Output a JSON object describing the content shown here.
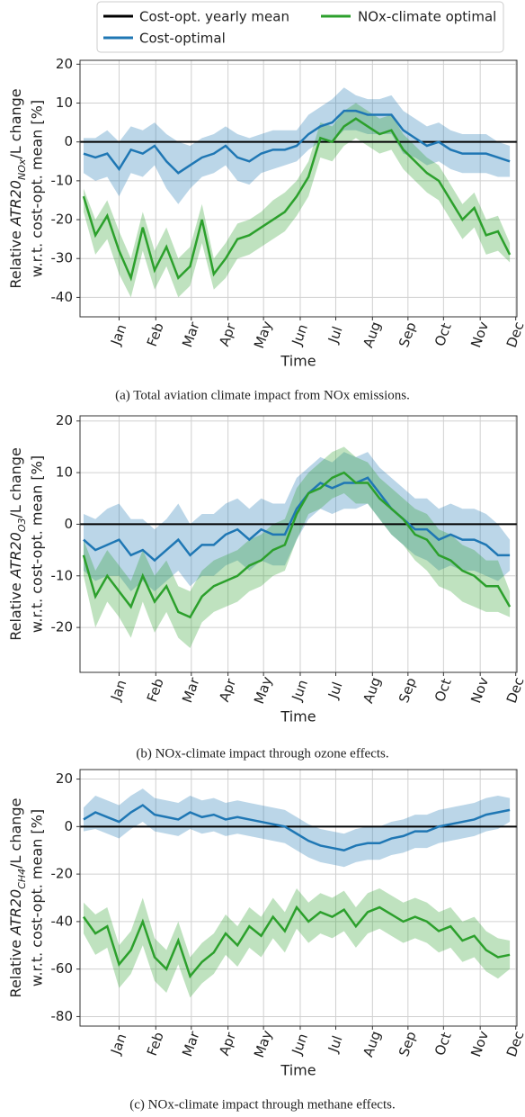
{
  "chart_data": [
    {
      "type": "line",
      "caption": "(a) Total aviation climate impact from NOx emissions.",
      "ylabel": {
        "parts": [
          "Relative ",
          "ATR20",
          "NOx",
          "/L change"
        ],
        "line2": "w.r.t. cost-opt. mean [%]"
      },
      "xlabel": "Time",
      "hline": {
        "name": "Cost-opt. yearly mean",
        "value": 0,
        "color": "#000000"
      },
      "x": [
        0,
        10,
        20,
        30,
        40,
        50,
        60,
        70,
        80,
        90,
        100,
        110,
        120,
        130,
        140,
        150,
        160,
        170,
        180,
        190,
        200,
        210,
        220,
        230,
        240,
        250,
        260,
        270,
        280,
        290,
        300,
        310,
        320,
        330,
        340,
        350,
        360
      ],
      "xlim": [
        -3,
        366
      ],
      "xticks": [
        {
          "value": 30,
          "label": "Jan"
        },
        {
          "value": 61,
          "label": "Feb"
        },
        {
          "value": 91,
          "label": "Mar"
        },
        {
          "value": 122,
          "label": "Apr"
        },
        {
          "value": 152,
          "label": "May"
        },
        {
          "value": 183,
          "label": "Jun"
        },
        {
          "value": 213,
          "label": "Jul"
        },
        {
          "value": 244,
          "label": "Aug"
        },
        {
          "value": 274,
          "label": "Sep"
        },
        {
          "value": 304,
          "label": "Oct"
        },
        {
          "value": 335,
          "label": "Nov"
        },
        {
          "value": 365,
          "label": "Dec"
        }
      ],
      "ylim": [
        -45,
        21
      ],
      "yticks": [
        -40,
        -30,
        -20,
        -10,
        0,
        10,
        20
      ],
      "grid": true,
      "series": [
        {
          "name": "Cost-optimal",
          "color": "#1f77b4",
          "values": [
            -3,
            -4,
            -3,
            -7,
            -2,
            -3,
            -1,
            -5,
            -8,
            -6,
            -4,
            -3,
            -1,
            -4,
            -5,
            -3,
            -2,
            -2,
            -1,
            2,
            4,
            5,
            8,
            8,
            7,
            7,
            7,
            3,
            1,
            -1,
            0,
            -2,
            -3,
            -3,
            -3,
            -4,
            -5
          ],
          "lower": [
            -8,
            -10,
            -9,
            -14,
            -8,
            -9,
            -6,
            -12,
            -16,
            -12,
            -9,
            -8,
            -6,
            -10,
            -11,
            -8,
            -7,
            -6,
            -5,
            -2,
            0,
            0,
            3,
            3,
            2,
            2,
            2,
            -3,
            -4,
            -6,
            -5,
            -7,
            -8,
            -8,
            -8,
            -9,
            -9
          ],
          "upper": [
            1,
            1,
            3,
            0,
            4,
            3,
            5,
            2,
            0,
            -1,
            1,
            2,
            4,
            2,
            1,
            2,
            3,
            3,
            3,
            7,
            9,
            11,
            14,
            12,
            11,
            11,
            12,
            8,
            6,
            4,
            5,
            3,
            2,
            2,
            2,
            0,
            -1
          ]
        },
        {
          "name": "NOx-climate optimal",
          "color": "#2ca02c",
          "values": [
            -14,
            -24,
            -19,
            -28,
            -35,
            -22,
            -33,
            -27,
            -35,
            -32,
            -20,
            -34,
            -30,
            -25,
            -24,
            -22,
            -20,
            -18,
            -14,
            -9,
            1,
            0,
            4,
            6,
            4,
            2,
            3,
            -2,
            -5,
            -8,
            -10,
            -15,
            -20,
            -17,
            -24,
            -23,
            -29
          ],
          "lower": [
            -18,
            -29,
            -25,
            -34,
            -40,
            -28,
            -38,
            -32,
            -40,
            -37,
            -26,
            -38,
            -35,
            -30,
            -29,
            -27,
            -25,
            -23,
            -19,
            -14,
            -4,
            -5,
            -1,
            1,
            -1,
            -3,
            -2,
            -7,
            -10,
            -13,
            -15,
            -20,
            -25,
            -22,
            -29,
            -28,
            -31
          ],
          "upper": [
            -12,
            -20,
            -15,
            -23,
            -30,
            -18,
            -28,
            -22,
            -30,
            -27,
            -16,
            -30,
            -26,
            -21,
            -20,
            -18,
            -15,
            -13,
            -10,
            -5,
            5,
            4,
            8,
            10,
            8,
            6,
            7,
            2,
            -1,
            -4,
            -6,
            -11,
            -16,
            -13,
            -20,
            -19,
            -26
          ]
        }
      ]
    },
    {
      "type": "line",
      "caption": "(b) NOx-climate impact through ozone effects.",
      "ylabel": {
        "parts": [
          "Relative ",
          "ATR20",
          "O3",
          "/L change"
        ],
        "line2": "w.r.t. cost-opt. mean [%]"
      },
      "xlabel": "Time",
      "hline": {
        "value": 0,
        "color": "#000000"
      },
      "x": [
        0,
        10,
        20,
        30,
        40,
        50,
        60,
        70,
        80,
        90,
        100,
        110,
        120,
        130,
        140,
        150,
        160,
        170,
        180,
        190,
        200,
        210,
        220,
        230,
        240,
        250,
        260,
        270,
        280,
        290,
        300,
        310,
        320,
        330,
        340,
        350,
        360
      ],
      "xlim": [
        -3,
        366
      ],
      "xticks": [
        {
          "value": 30,
          "label": "Jan"
        },
        {
          "value": 61,
          "label": "Feb"
        },
        {
          "value": 91,
          "label": "Mar"
        },
        {
          "value": 122,
          "label": "Apr"
        },
        {
          "value": 152,
          "label": "May"
        },
        {
          "value": 183,
          "label": "Jun"
        },
        {
          "value": 213,
          "label": "Jul"
        },
        {
          "value": 244,
          "label": "Aug"
        },
        {
          "value": 274,
          "label": "Sep"
        },
        {
          "value": 304,
          "label": "Oct"
        },
        {
          "value": 335,
          "label": "Nov"
        },
        {
          "value": 365,
          "label": "Dec"
        }
      ],
      "ylim": [
        -28.7,
        21
      ],
      "yticks": [
        -20,
        -10,
        0,
        10,
        20
      ],
      "grid": true,
      "series": [
        {
          "name": "Cost-optimal",
          "color": "#1f77b4",
          "values": [
            -3,
            -5,
            -4,
            -3,
            -6,
            -5,
            -7,
            -5,
            -3,
            -6,
            -4,
            -4,
            -2,
            -1,
            -3,
            -1,
            -2,
            -2,
            3,
            6,
            8,
            7,
            8,
            8,
            9,
            6,
            3,
            1,
            -1,
            -1,
            -3,
            -2,
            -3,
            -3,
            -4,
            -6,
            -6
          ],
          "lower": [
            -9,
            -11,
            -10,
            -10,
            -13,
            -11,
            -13,
            -11,
            -9,
            -12,
            -10,
            -10,
            -8,
            -7,
            -9,
            -7,
            -8,
            -8,
            -3,
            1,
            3,
            2,
            3,
            3,
            4,
            1,
            -2,
            -4,
            -6,
            -7,
            -9,
            -8,
            -9,
            -9,
            -10,
            -11,
            -9
          ],
          "upper": [
            2,
            1,
            3,
            4,
            1,
            1,
            -1,
            1,
            4,
            0,
            2,
            2,
            4,
            5,
            3,
            5,
            4,
            4,
            9,
            11,
            13,
            12,
            14,
            13,
            14,
            11,
            9,
            7,
            5,
            5,
            3,
            4,
            3,
            3,
            2,
            0,
            -3
          ]
        },
        {
          "name": "NOx-climate optimal",
          "color": "#2ca02c",
          "values": [
            -6,
            -14,
            -10,
            -13,
            -16,
            -10,
            -15,
            -12,
            -17,
            -18,
            -14,
            -12,
            -11,
            -10,
            -8,
            -7,
            -5,
            -4,
            2,
            6,
            7,
            9,
            10,
            8,
            8,
            5,
            3,
            1,
            -2,
            -3,
            -6,
            -7,
            -9,
            -10,
            -12,
            -12,
            -16
          ],
          "lower": [
            -10,
            -20,
            -15,
            -18,
            -22,
            -15,
            -21,
            -17,
            -22,
            -24,
            -19,
            -17,
            -16,
            -15,
            -13,
            -12,
            -10,
            -9,
            -3,
            2,
            3,
            5,
            6,
            4,
            4,
            1,
            -2,
            -4,
            -7,
            -9,
            -12,
            -13,
            -15,
            -16,
            -17,
            -17,
            -18
          ],
          "upper": [
            -3,
            -9,
            -5,
            -8,
            -11,
            -5,
            -10,
            -7,
            -12,
            -13,
            -9,
            -7,
            -6,
            -5,
            -3,
            -2,
            0,
            1,
            7,
            10,
            12,
            14,
            15,
            13,
            12,
            9,
            7,
            5,
            3,
            2,
            -1,
            -2,
            -4,
            -5,
            -7,
            -7,
            -13
          ]
        }
      ]
    },
    {
      "type": "line",
      "caption": "(c) NOx-climate impact through methane effects.",
      "ylabel": {
        "parts": [
          "Relative ",
          "ATR20",
          "CH4",
          "/L change"
        ],
        "line2": "w.r.t. cost-opt. mean [%]"
      },
      "xlabel": "Time",
      "hline": {
        "value": 0,
        "color": "#000000"
      },
      "x": [
        0,
        10,
        20,
        30,
        40,
        50,
        60,
        70,
        80,
        90,
        100,
        110,
        120,
        130,
        140,
        150,
        160,
        170,
        180,
        190,
        200,
        210,
        220,
        230,
        240,
        250,
        260,
        270,
        280,
        290,
        300,
        310,
        320,
        330,
        340,
        350,
        360
      ],
      "xlim": [
        -3,
        366
      ],
      "xticks": [
        {
          "value": 30,
          "label": "Jan"
        },
        {
          "value": 61,
          "label": "Feb"
        },
        {
          "value": 91,
          "label": "Mar"
        },
        {
          "value": 122,
          "label": "Apr"
        },
        {
          "value": 152,
          "label": "May"
        },
        {
          "value": 183,
          "label": "Jun"
        },
        {
          "value": 213,
          "label": "Jul"
        },
        {
          "value": 244,
          "label": "Aug"
        },
        {
          "value": 274,
          "label": "Sep"
        },
        {
          "value": 304,
          "label": "Oct"
        },
        {
          "value": 335,
          "label": "Nov"
        },
        {
          "value": 365,
          "label": "Dec"
        }
      ],
      "ylim": [
        -84,
        24
      ],
      "yticks": [
        -80,
        -60,
        -40,
        -20,
        0,
        20
      ],
      "grid": true,
      "series": [
        {
          "name": "Cost-optimal",
          "color": "#1f77b4",
          "values": [
            3,
            6,
            4,
            2,
            6,
            9,
            5,
            4,
            3,
            6,
            4,
            5,
            3,
            4,
            3,
            2,
            1,
            0,
            -3,
            -6,
            -8,
            -9,
            -10,
            -8,
            -7,
            -7,
            -5,
            -4,
            -2,
            -2,
            0,
            1,
            2,
            3,
            5,
            6,
            7
          ],
          "lower": [
            -2,
            -1,
            -3,
            -5,
            -1,
            2,
            -2,
            -3,
            -4,
            -1,
            -3,
            -2,
            -4,
            -3,
            -4,
            -5,
            -6,
            -7,
            -10,
            -13,
            -15,
            -16,
            -17,
            -15,
            -14,
            -14,
            -12,
            -11,
            -9,
            -9,
            -7,
            -6,
            -5,
            -4,
            -2,
            -1,
            2
          ],
          "upper": [
            8,
            13,
            11,
            9,
            13,
            16,
            12,
            11,
            10,
            13,
            11,
            12,
            10,
            11,
            10,
            9,
            8,
            7,
            4,
            1,
            -1,
            -2,
            -3,
            -1,
            0,
            0,
            2,
            3,
            5,
            5,
            7,
            8,
            9,
            10,
            12,
            13,
            12
          ]
        },
        {
          "name": "NOx-climate optimal",
          "color": "#2ca02c",
          "values": [
            -38,
            -45,
            -42,
            -58,
            -52,
            -40,
            -55,
            -60,
            -48,
            -63,
            -57,
            -53,
            -45,
            -50,
            -42,
            -46,
            -38,
            -44,
            -34,
            -40,
            -36,
            -38,
            -35,
            -42,
            -36,
            -34,
            -37,
            -40,
            -38,
            -40,
            -44,
            -42,
            -48,
            -46,
            -52,
            -55,
            -54
          ],
          "lower": [
            -45,
            -54,
            -51,
            -68,
            -62,
            -50,
            -65,
            -70,
            -58,
            -72,
            -66,
            -62,
            -54,
            -59,
            -51,
            -55,
            -47,
            -53,
            -43,
            -49,
            -45,
            -47,
            -44,
            -51,
            -45,
            -43,
            -46,
            -49,
            -47,
            -49,
            -53,
            -51,
            -57,
            -55,
            -61,
            -64,
            -60
          ],
          "upper": [
            -32,
            -37,
            -34,
            -50,
            -44,
            -30,
            -47,
            -52,
            -40,
            -55,
            -49,
            -45,
            -37,
            -42,
            -34,
            -38,
            -30,
            -36,
            -26,
            -32,
            -28,
            -30,
            -27,
            -34,
            -28,
            -26,
            -29,
            -32,
            -30,
            -32,
            -36,
            -34,
            -40,
            -38,
            -44,
            -47,
            -48
          ]
        }
      ]
    }
  ]
}
